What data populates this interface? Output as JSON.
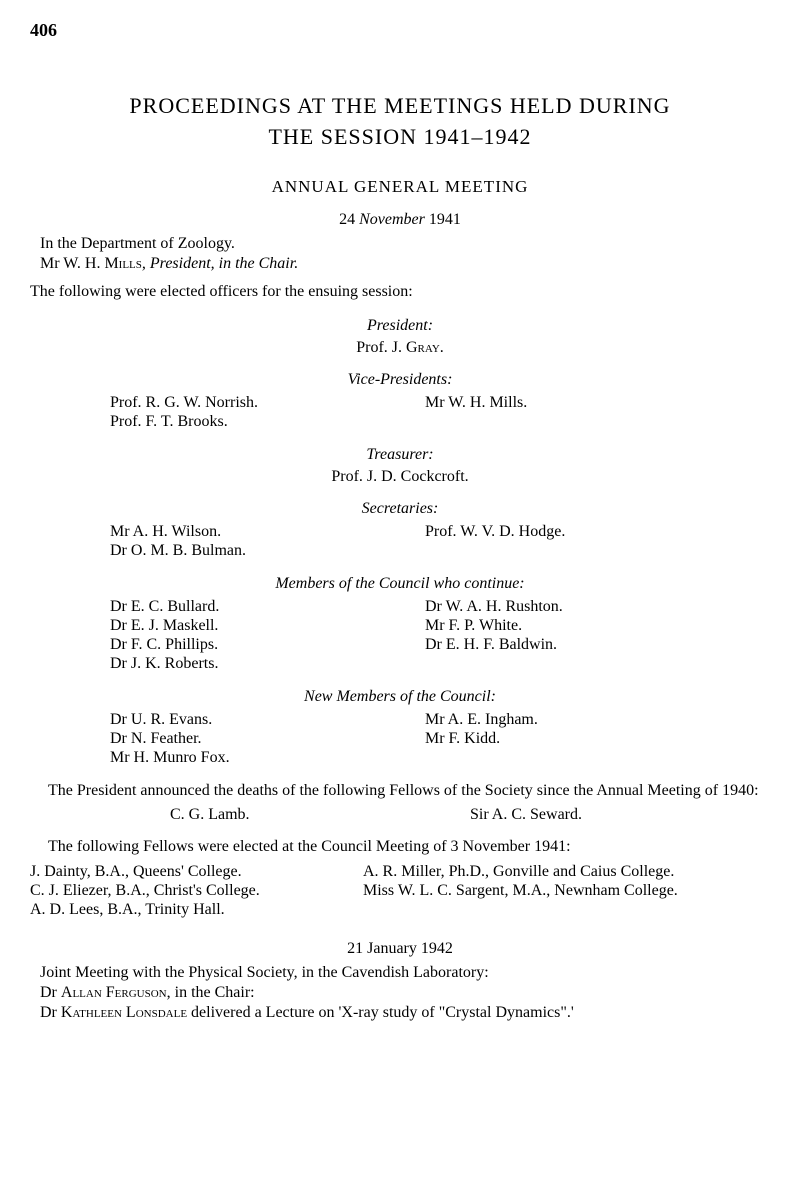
{
  "page_number": "406",
  "main_title_line1": "PROCEEDINGS AT THE MEETINGS HELD DURING",
  "main_title_line2": "THE SESSION 1941–1942",
  "subtitle": "ANNUAL GENERAL MEETING",
  "meeting1": {
    "day": "24",
    "month": "November",
    "year": "1941",
    "location": "In the Department of Zoology.",
    "chair_prefix": "Mr W. H. ",
    "chair_surname": "Mills",
    "chair_role": ", President, in the Chair.",
    "elected_intro": "The following were elected officers for the ensuing session:"
  },
  "officers": {
    "president_heading": "President:",
    "president_prefix": "Prof. J. ",
    "president_surname": "Gray.",
    "vp_heading": "Vice-Presidents:",
    "vp_left": [
      "Prof. R. G. W. Norrish.",
      "Prof. F. T. Brooks."
    ],
    "vp_right": [
      "Mr W. H. Mills."
    ],
    "treasurer_heading": "Treasurer:",
    "treasurer": "Prof. J. D. Cockcroft.",
    "secretaries_heading": "Secretaries:",
    "sec_left": [
      "Mr A. H. Wilson.",
      "Dr O. M. B. Bulman."
    ],
    "sec_right": [
      "Prof. W. V. D. Hodge."
    ],
    "continue_heading": "Members of the Council who continue:",
    "cont_left": [
      "Dr E. C. Bullard.",
      "Dr E. J. Maskell.",
      "Dr F. C. Phillips.",
      "Dr J. K. Roberts."
    ],
    "cont_right": [
      "Dr W. A. H. Rushton.",
      "Mr F. P. White.",
      "Dr E. H. F. Baldwin."
    ],
    "new_heading": "New Members of the Council:",
    "new_left": [
      "Dr U. R. Evans.",
      "Dr N. Feather.",
      "Mr H. Munro Fox."
    ],
    "new_right": [
      "Mr A. E. Ingham.",
      "Mr F. Kidd."
    ]
  },
  "deaths": {
    "intro": "The President announced the deaths of the following Fellows of the Society since the Annual Meeting of 1940:",
    "left": "C. G. Lamb.",
    "right": "Sir A. C. Seward."
  },
  "elected": {
    "intro": "The following Fellows were elected at the Council Meeting of 3 November 1941:",
    "left": [
      "J. Dainty, B.A., Queens' College.",
      "C. J. Eliezer, B.A., Christ's College.",
      "A. D. Lees, B.A., Trinity Hall."
    ],
    "right": [
      "A. R. Miller, Ph.D., Gonville and Caius College.",
      "Miss W. L. C. Sargent, M.A., Newnham College."
    ]
  },
  "meeting2": {
    "day": "21",
    "month": "January",
    "year": "1942",
    "line1": "Joint Meeting with the Physical Society, in the Cavendish Laboratory:",
    "chair_prefix": "Dr ",
    "chair_name": "Allan Ferguson",
    "chair_suffix": ", in the Chair:",
    "lecture_prefix": "Dr ",
    "lecture_name": "Kathleen Lonsdale",
    "lecture_suffix": " delivered a Lecture on 'X-ray study of \"Crystal Dynamics\".'"
  }
}
